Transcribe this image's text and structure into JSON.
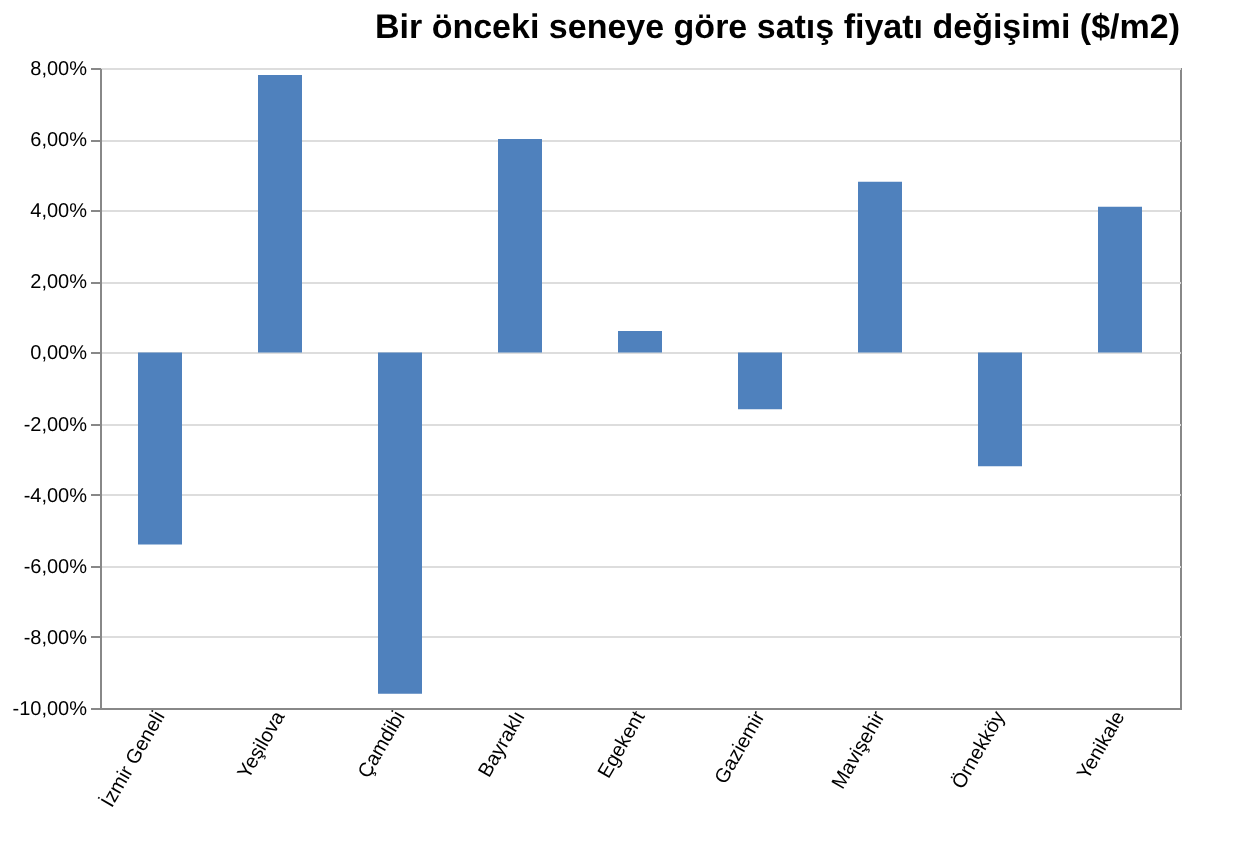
{
  "chart_data": {
    "type": "bar",
    "title": "Bir önceki seneye göre satış fiyatı değişimi ($/m2)",
    "categories": [
      "İzmir Geneli",
      "Yeşilova",
      "Çamdibi",
      "Bayraklı",
      "Egekent",
      "Gaziemir",
      "Mavişehir",
      "Örnekköy",
      "Yenikale"
    ],
    "values": [
      -5.4,
      7.8,
      -9.6,
      6.0,
      0.6,
      -1.6,
      4.8,
      -3.2,
      4.1
    ],
    "color": "#4f81bd",
    "ylim": [
      -10,
      8
    ],
    "yticks": [
      {
        "value": -10,
        "label": "-10,00%"
      },
      {
        "value": -8,
        "label": "-8,00%"
      },
      {
        "value": -6,
        "label": "-6,00%"
      },
      {
        "value": -4,
        "label": "-4,00%"
      },
      {
        "value": -2,
        "label": "-2,00%"
      },
      {
        "value": 0,
        "label": "0,00%"
      },
      {
        "value": 2,
        "label": "2,00%"
      },
      {
        "value": 4,
        "label": "4,00%"
      },
      {
        "value": 6,
        "label": "6,00%"
      },
      {
        "value": 8,
        "label": "8,00%"
      }
    ],
    "grid": "y"
  }
}
